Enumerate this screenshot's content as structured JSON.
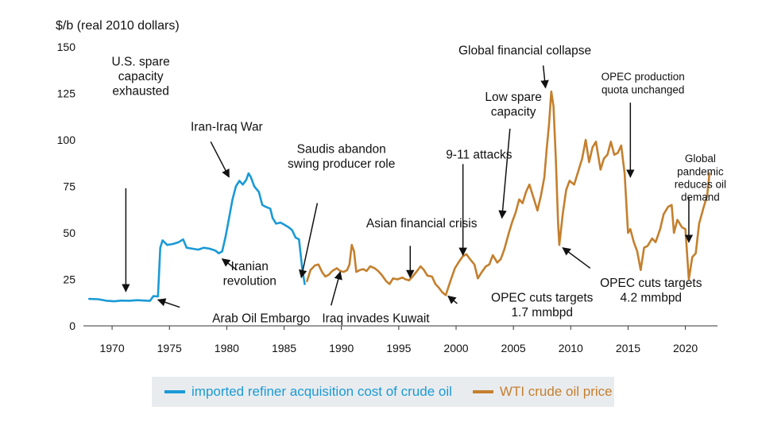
{
  "chart_data": {
    "type": "line",
    "ylabel": "$/b (real 2010 dollars)",
    "ylim": [
      0,
      150
    ],
    "xlim": [
      1967.5,
      2022.8
    ],
    "yticks": [
      0,
      25,
      50,
      75,
      100,
      125,
      150
    ],
    "xticks": [
      1970,
      1975,
      1980,
      1985,
      1990,
      1995,
      2000,
      2005,
      2010,
      2015,
      2020
    ],
    "grid": false,
    "legend_position": "bottom",
    "series": [
      {
        "name": "imported refiner acquisition cost of crude oil",
        "color": "#1a9ad6",
        "points": [
          [
            1968.0,
            14.5
          ],
          [
            1968.8,
            14.3
          ],
          [
            1969.5,
            13.5
          ],
          [
            1970.2,
            13.2
          ],
          [
            1970.8,
            13.6
          ],
          [
            1971.5,
            13.5
          ],
          [
            1972.2,
            13.8
          ],
          [
            1972.8,
            13.6
          ],
          [
            1973.3,
            13.4
          ],
          [
            1973.6,
            16.0
          ],
          [
            1974.0,
            15.8
          ],
          [
            1974.2,
            42.0
          ],
          [
            1974.4,
            46.0
          ],
          [
            1974.8,
            43.5
          ],
          [
            1975.3,
            44.0
          ],
          [
            1975.8,
            45.0
          ],
          [
            1976.2,
            46.5
          ],
          [
            1976.5,
            42.0
          ],
          [
            1977.0,
            41.5
          ],
          [
            1977.5,
            41.0
          ],
          [
            1978.0,
            42.0
          ],
          [
            1978.5,
            41.5
          ],
          [
            1979.0,
            40.5
          ],
          [
            1979.3,
            39.0
          ],
          [
            1979.6,
            40.0
          ],
          [
            1979.9,
            48.0
          ],
          [
            1980.2,
            58.0
          ],
          [
            1980.5,
            68.0
          ],
          [
            1980.8,
            75.0
          ],
          [
            1981.1,
            78.0
          ],
          [
            1981.4,
            76.0
          ],
          [
            1981.7,
            78.5
          ],
          [
            1981.9,
            82.0
          ],
          [
            1982.1,
            80.0
          ],
          [
            1982.4,
            75.0
          ],
          [
            1982.8,
            72.0
          ],
          [
            1983.1,
            65.0
          ],
          [
            1983.4,
            64.0
          ],
          [
            1983.8,
            63.0
          ],
          [
            1984.0,
            58.0
          ],
          [
            1984.3,
            55.0
          ],
          [
            1984.7,
            55.5
          ],
          [
            1985.0,
            54.5
          ],
          [
            1985.4,
            53.0
          ],
          [
            1985.7,
            51.5
          ],
          [
            1986.0,
            47.5
          ],
          [
            1986.3,
            46.5
          ],
          [
            1986.6,
            30.0
          ],
          [
            1986.8,
            22.5
          ]
        ]
      },
      {
        "name": "WTI crude oil price",
        "color": "#c47f2d",
        "points": [
          [
            1987.0,
            24.0
          ],
          [
            1987.3,
            30.0
          ],
          [
            1987.7,
            32.5
          ],
          [
            1988.0,
            33.0
          ],
          [
            1988.3,
            29.0
          ],
          [
            1988.6,
            26.5
          ],
          [
            1988.9,
            27.5
          ],
          [
            1989.2,
            29.5
          ],
          [
            1989.6,
            31.0
          ],
          [
            1989.9,
            29.5
          ],
          [
            1990.2,
            29.0
          ],
          [
            1990.5,
            30.0
          ],
          [
            1990.7,
            33.0
          ],
          [
            1990.9,
            43.5
          ],
          [
            1991.1,
            40.0
          ],
          [
            1991.3,
            29.0
          ],
          [
            1991.6,
            30.0
          ],
          [
            1991.9,
            30.5
          ],
          [
            1992.2,
            29.5
          ],
          [
            1992.5,
            32.0
          ],
          [
            1992.9,
            31.0
          ],
          [
            1993.2,
            29.5
          ],
          [
            1993.5,
            27.5
          ],
          [
            1993.9,
            24.0
          ],
          [
            1994.2,
            22.5
          ],
          [
            1994.5,
            25.5
          ],
          [
            1994.9,
            25.0
          ],
          [
            1995.3,
            26.0
          ],
          [
            1995.6,
            25.0
          ],
          [
            1995.9,
            24.5
          ],
          [
            1996.2,
            26.5
          ],
          [
            1996.6,
            29.5
          ],
          [
            1996.9,
            32.0
          ],
          [
            1997.2,
            30.0
          ],
          [
            1997.5,
            27.0
          ],
          [
            1997.9,
            26.5
          ],
          [
            1998.2,
            22.5
          ],
          [
            1998.5,
            20.5
          ],
          [
            1998.8,
            18.0
          ],
          [
            1999.1,
            16.5
          ],
          [
            1999.5,
            24.0
          ],
          [
            1999.9,
            31.0
          ],
          [
            2000.2,
            34.0
          ],
          [
            2000.6,
            37.5
          ],
          [
            2000.9,
            38.5
          ],
          [
            2001.2,
            36.0
          ],
          [
            2001.6,
            33.0
          ],
          [
            2001.9,
            25.5
          ],
          [
            2002.2,
            28.5
          ],
          [
            2002.6,
            32.0
          ],
          [
            2002.9,
            33.0
          ],
          [
            2003.2,
            38.0
          ],
          [
            2003.6,
            34.0
          ],
          [
            2003.9,
            36.0
          ],
          [
            2004.2,
            41.0
          ],
          [
            2004.6,
            50.0
          ],
          [
            2004.9,
            56.0
          ],
          [
            2005.2,
            61.0
          ],
          [
            2005.5,
            68.0
          ],
          [
            2005.8,
            66.0
          ],
          [
            2006.1,
            72.0
          ],
          [
            2006.4,
            76.0
          ],
          [
            2006.8,
            68.0
          ],
          [
            2007.1,
            62.0
          ],
          [
            2007.4,
            70.0
          ],
          [
            2007.7,
            80.0
          ],
          [
            2007.9,
            95.0
          ],
          [
            2008.1,
            108.0
          ],
          [
            2008.3,
            126.0
          ],
          [
            2008.5,
            118.0
          ],
          [
            2008.7,
            90.0
          ],
          [
            2008.9,
            55.0
          ],
          [
            2009.0,
            43.5
          ],
          [
            2009.3,
            60.0
          ],
          [
            2009.6,
            73.0
          ],
          [
            2009.9,
            78.0
          ],
          [
            2010.3,
            76.0
          ],
          [
            2010.7,
            84.0
          ],
          [
            2011.0,
            90.0
          ],
          [
            2011.3,
            100.0
          ],
          [
            2011.6,
            88.0
          ],
          [
            2011.9,
            96.0
          ],
          [
            2012.2,
            99.0
          ],
          [
            2012.6,
            84.0
          ],
          [
            2012.9,
            90.0
          ],
          [
            2013.2,
            92.0
          ],
          [
            2013.5,
            99.0
          ],
          [
            2013.8,
            92.0
          ],
          [
            2014.1,
            93.0
          ],
          [
            2014.4,
            97.0
          ],
          [
            2014.7,
            82.0
          ],
          [
            2015.0,
            50.0
          ],
          [
            2015.2,
            52.0
          ],
          [
            2015.5,
            45.0
          ],
          [
            2015.8,
            40.0
          ],
          [
            2016.1,
            30.0
          ],
          [
            2016.4,
            42.0
          ],
          [
            2016.7,
            43.0
          ],
          [
            2017.1,
            47.0
          ],
          [
            2017.4,
            45.0
          ],
          [
            2017.8,
            52.0
          ],
          [
            2018.1,
            60.0
          ],
          [
            2018.5,
            64.0
          ],
          [
            2018.8,
            65.0
          ],
          [
            2019.0,
            50.0
          ],
          [
            2019.3,
            57.0
          ],
          [
            2019.7,
            53.0
          ],
          [
            2020.0,
            52.0
          ],
          [
            2020.3,
            25.0
          ],
          [
            2020.6,
            37.0
          ],
          [
            2020.9,
            39.0
          ],
          [
            2021.2,
            55.0
          ],
          [
            2021.6,
            64.0
          ],
          [
            2021.9,
            70.0
          ],
          [
            2022.1,
            82.0
          ]
        ]
      }
    ],
    "annotations": [
      {
        "lines": [
          "U.S. spare",
          "capacity",
          "exhausted"
        ],
        "anchor": [
          1971.2,
          18.5
        ],
        "arrow_from": [
          1971.2,
          74.0
        ]
      },
      {
        "lines": [
          "Arab Oil Embargo"
        ],
        "anchor": [
          1974.0,
          14.0
        ],
        "arrow_from": [
          1975.9,
          10.0
        ]
      },
      {
        "lines": [
          "Iran-Iraq War"
        ],
        "anchor": [
          1980.2,
          80.0
        ],
        "arrow_from": [
          1978.6,
          99.0
        ]
      },
      {
        "lines": [
          "Iranian",
          "revolution"
        ],
        "anchor": [
          1979.6,
          36.0
        ],
        "arrow_from": [
          1980.9,
          30.0
        ]
      },
      {
        "lines": [
          "Saudis abandon",
          "swing producer role"
        ],
        "anchor": [
          1986.5,
          26.0
        ],
        "arrow_from": [
          1987.9,
          66.0
        ]
      },
      {
        "lines": [
          "Iraq invades Kuwait"
        ],
        "anchor": [
          1989.9,
          29.0
        ],
        "arrow_from": [
          1989.1,
          11.0
        ]
      },
      {
        "lines": [
          "Asian financial crisis"
        ],
        "anchor": [
          1996.0,
          26.0
        ],
        "arrow_from": [
          1996.0,
          43.0
        ]
      },
      {
        "lines": [
          "9-11 attacks"
        ],
        "anchor": [
          2000.6,
          38.0
        ],
        "arrow_from": [
          2000.6,
          87.0
        ]
      },
      {
        "lines": [
          "OPEC cuts targets",
          "1.7 mmbpd"
        ],
        "anchor": [
          1999.3,
          16.0
        ],
        "arrow_from": [
          2000.1,
          12.0
        ]
      },
      {
        "lines": [
          "Low spare",
          "capacity"
        ],
        "anchor": [
          2004.0,
          58.0
        ],
        "arrow_from": [
          2004.7,
          106.0
        ]
      },
      {
        "lines": [
          "Global financial collapse"
        ],
        "anchor": [
          2007.8,
          128.0
        ],
        "arrow_from": [
          2007.6,
          140.0
        ]
      },
      {
        "lines": [
          "OPEC production",
          "quota unchanged"
        ],
        "anchor": [
          2015.2,
          80.0
        ],
        "arrow_from": [
          2015.2,
          120.0
        ]
      },
      {
        "lines": [
          "OPEC cuts targets",
          "4.2 mmbpd"
        ],
        "anchor": [
          2009.3,
          42.0
        ],
        "arrow_from": [
          2011.7,
          31.0
        ]
      },
      {
        "lines": [
          "Global",
          "pandemic",
          "reduces oil",
          "demand"
        ],
        "anchor": [
          2020.3,
          45.0
        ],
        "arrow_from": [
          2020.3,
          69.0
        ]
      }
    ]
  }
}
